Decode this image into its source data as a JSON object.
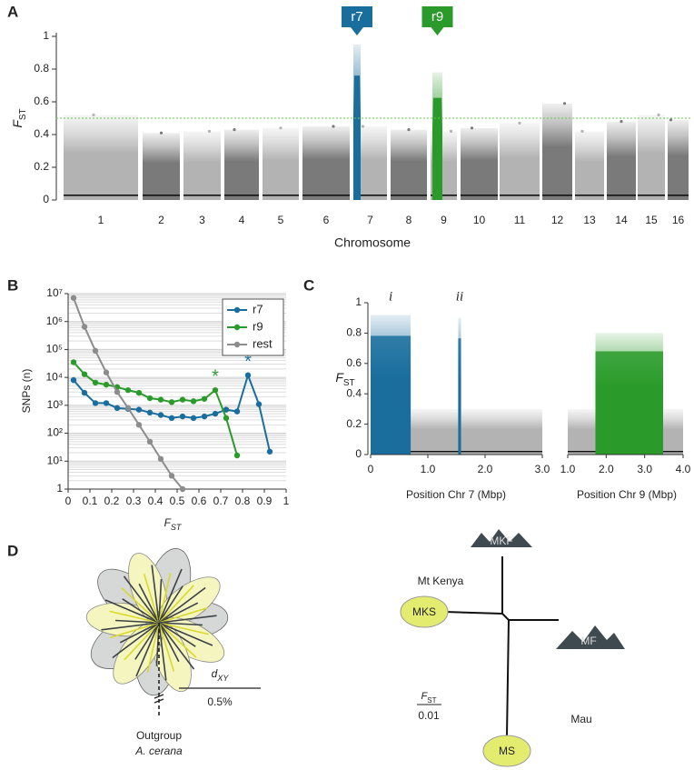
{
  "panel_labels": [
    "A",
    "B",
    "C",
    "D"
  ],
  "chart_data": [
    {
      "type": "manhattan",
      "categories": [
        "1",
        "2",
        "3",
        "4",
        "5",
        "6",
        "7",
        "8",
        "9",
        "10",
        "11",
        "12",
        "13",
        "14",
        "15",
        "16"
      ],
      "values": [
        0.52,
        0.41,
        0.42,
        0.43,
        0.44,
        0.45,
        0.45,
        0.43,
        0.42,
        0.44,
        0.47,
        0.59,
        0.42,
        0.48,
        0.52,
        0.49
      ],
      "colors": [
        "#b3b3b3",
        "#7a7a7a"
      ],
      "highlights": [
        {
          "name": "r7",
          "category": "7",
          "color": "#1a6e9e",
          "max": 0.95
        },
        {
          "name": "r9",
          "category": "9",
          "color": "#2a9b2a",
          "max": 0.78
        }
      ],
      "threshold": 0.5,
      "threshold_color": "#66cc44",
      "x_label": "Chromosome",
      "y_label": {
        "text": "F",
        "sub": "ST"
      },
      "ylim": [
        0,
        1
      ],
      "yticks": [
        0,
        0.2,
        0.4,
        0.6,
        0.8,
        1
      ]
    },
    {
      "type": "line",
      "log_y": true,
      "grid": true,
      "legend": "top-right",
      "x": [
        0.025,
        0.075,
        0.125,
        0.175,
        0.225,
        0.275,
        0.325,
        0.375,
        0.425,
        0.475,
        0.525,
        0.575,
        0.625,
        0.675,
        0.725,
        0.775,
        0.825,
        0.875,
        0.925
      ],
      "series": [
        {
          "name": "r7",
          "color": "#1a6e9e",
          "values": [
            8000,
            2800,
            1200,
            1200,
            800,
            750,
            700,
            550,
            450,
            350,
            400,
            350,
            400,
            500,
            700,
            600,
            12000,
            1100,
            22
          ]
        },
        {
          "name": "r9",
          "color": "#2a9b2a",
          "values": [
            35000,
            13000,
            6500,
            5500,
            4500,
            3500,
            2800,
            1800,
            1600,
            1300,
            1600,
            1400,
            1700,
            3500,
            350,
            16,
            null,
            null,
            null
          ]
        },
        {
          "name": "rest",
          "color": "#8c8c8c",
          "values": [
            7000000,
            650000,
            90000,
            15000,
            3000,
            800,
            200,
            50,
            12,
            3,
            1,
            null,
            null,
            null,
            null,
            null,
            null,
            null,
            null
          ]
        }
      ],
      "annotations": [
        {
          "text": "*",
          "series": "r9",
          "at_x": 0.675,
          "color": "#2a9b2a"
        },
        {
          "text": "*",
          "series": "r7",
          "at_x": 0.825,
          "color": "#1a6e9e"
        }
      ],
      "x_label": {
        "text": "F",
        "sub": "ST"
      },
      "y_label": "SNPs (n)",
      "xlim": [
        0,
        1
      ],
      "xticks": [
        0,
        0.1,
        0.2,
        0.3,
        0.4,
        0.5,
        0.6,
        0.7,
        0.8,
        0.9,
        1
      ],
      "ylim": [
        1,
        10000000
      ],
      "yticks": [
        {
          "value": 1,
          "label": "1"
        },
        {
          "value": 10,
          "label": "10¹"
        },
        {
          "value": 100,
          "label": "10²"
        },
        {
          "value": 1000,
          "label": "10³"
        },
        {
          "value": 10000,
          "label": "10⁴"
        },
        {
          "value": 100000,
          "label": "10⁵"
        },
        {
          "value": 1000000,
          "label": "10⁶"
        },
        {
          "value": 10000000,
          "label": "10⁷"
        }
      ]
    },
    {
      "type": "region_scatter",
      "x_label": "Position Chr 7 (Mbp)",
      "y_label": {
        "text": "F",
        "sub": "ST"
      },
      "xlim": [
        0,
        3
      ],
      "xticks": [
        0,
        {
          "value": 1,
          "label": "1.0"
        },
        {
          "value": 2,
          "label": "2.0"
        },
        {
          "value": 3,
          "label": "3.0"
        }
      ],
      "ylim": [
        0,
        1
      ],
      "yticks": [
        0,
        0.2,
        0.4,
        0.6,
        0.8,
        1
      ],
      "background_color": "#b3b3b3",
      "background_max": 0.3,
      "highlight_color": "#1a6e9e",
      "regions": [
        {
          "label": "i",
          "start": 0,
          "end": 0.7,
          "max": 0.92
        },
        {
          "label": "ii",
          "start": 1.53,
          "end": 1.58,
          "max": 0.9
        }
      ]
    },
    {
      "type": "region_scatter",
      "x_label": "Position Chr 9 (Mbp)",
      "xlim": [
        1,
        4
      ],
      "xticks": [
        {
          "value": 1,
          "label": "1.0"
        },
        {
          "value": 2,
          "label": "2.0"
        },
        {
          "value": 3,
          "label": "3.0"
        },
        {
          "value": 4,
          "label": "4.0"
        }
      ],
      "ylim": [
        0,
        1
      ],
      "background_color": "#b3b3b3",
      "background_max": 0.3,
      "highlight_color": "#2a9b2a",
      "regions": [
        {
          "start": 1.72,
          "end": 3.48,
          "max": 0.8
        }
      ]
    }
  ],
  "diagram": {
    "tree_left": {
      "scale": {
        "label": {
          "text": "d",
          "sub": "XY"
        },
        "value": "0.5%"
      },
      "outgroup": "Outgroup",
      "outgroup_species": "A. cerana"
    },
    "tree_right": {
      "nodes": [
        "MKF",
        "MKS",
        "MF",
        "MS"
      ],
      "regions": [
        "Mt Kenya",
        "Mau"
      ],
      "scale": {
        "label": {
          "text": "F",
          "sub": "ST"
        },
        "value": "0.01"
      }
    }
  }
}
